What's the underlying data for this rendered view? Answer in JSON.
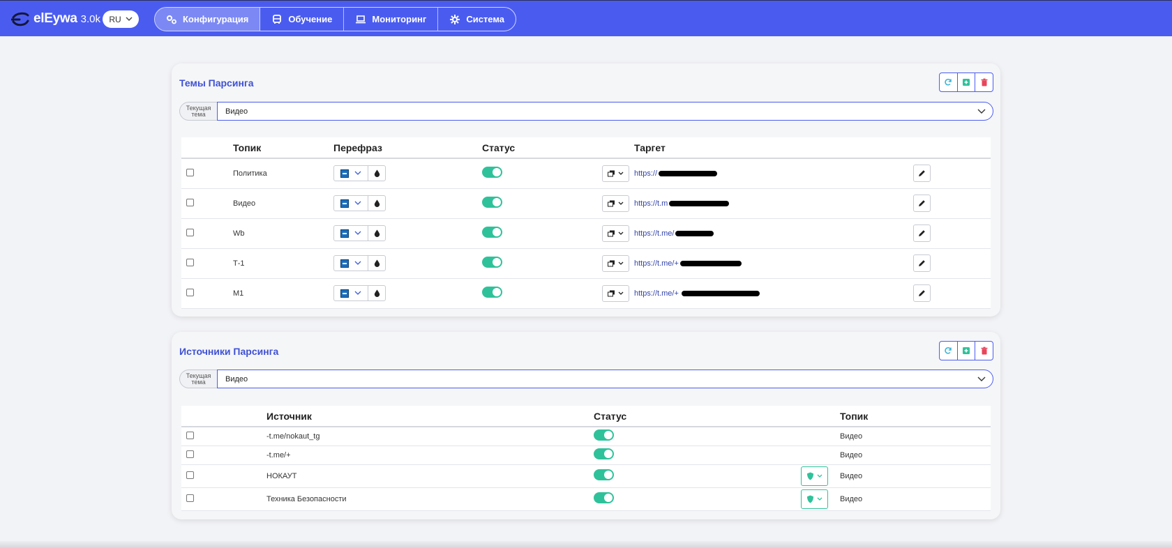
{
  "header": {
    "brand_name": "elEywa",
    "version": "3.0k",
    "language": "RU",
    "tabs": [
      {
        "label": "Конфигурация",
        "icon": "gears-icon",
        "active": true
      },
      {
        "label": "Обучение",
        "icon": "bus-icon",
        "active": false
      },
      {
        "label": "Мониторинг",
        "icon": "laptop-icon",
        "active": false
      },
      {
        "label": "Система",
        "icon": "gear-icon",
        "active": false
      }
    ]
  },
  "themes_card": {
    "title": "Темы Парсинга",
    "selector_label": "Текущая тема",
    "selected_theme": "Видео",
    "columns": [
      "Топик",
      "Перефраз",
      "Статус",
      "Таргет"
    ],
    "rows": [
      {
        "topic": "Политика",
        "status_on": true,
        "target": "https://"
      },
      {
        "topic": "Видео",
        "status_on": true,
        "target": "https://t.m"
      },
      {
        "topic": "Wb",
        "status_on": true,
        "target": "https://t.me/"
      },
      {
        "topic": "Т-1",
        "status_on": true,
        "target": "https://t.me/+"
      },
      {
        "topic": "M1",
        "status_on": true,
        "target": "https://t.me/+"
      }
    ]
  },
  "sources_card": {
    "title": "Источники Парсинга",
    "selector_label": "Текущая тема",
    "selected_theme": "Видео",
    "columns": [
      "Источник",
      "Статус",
      "Топик"
    ],
    "rows": [
      {
        "source": "-t.me/nokaut_tg",
        "status_on": true,
        "shield": false,
        "topic": "Видео"
      },
      {
        "source": "-t.me/+",
        "status_on": true,
        "shield": false,
        "topic": "Видео"
      },
      {
        "source": "НОКАУТ",
        "status_on": true,
        "shield": true,
        "topic": "Видео"
      },
      {
        "source": "Техника Безопасности",
        "status_on": true,
        "shield": true,
        "topic": "Видео"
      }
    ]
  },
  "colors": {
    "accent": "#4a5cf0",
    "toggle_on": "#2fc29a",
    "delete": "#e8455b",
    "add": "#2fc29a"
  }
}
